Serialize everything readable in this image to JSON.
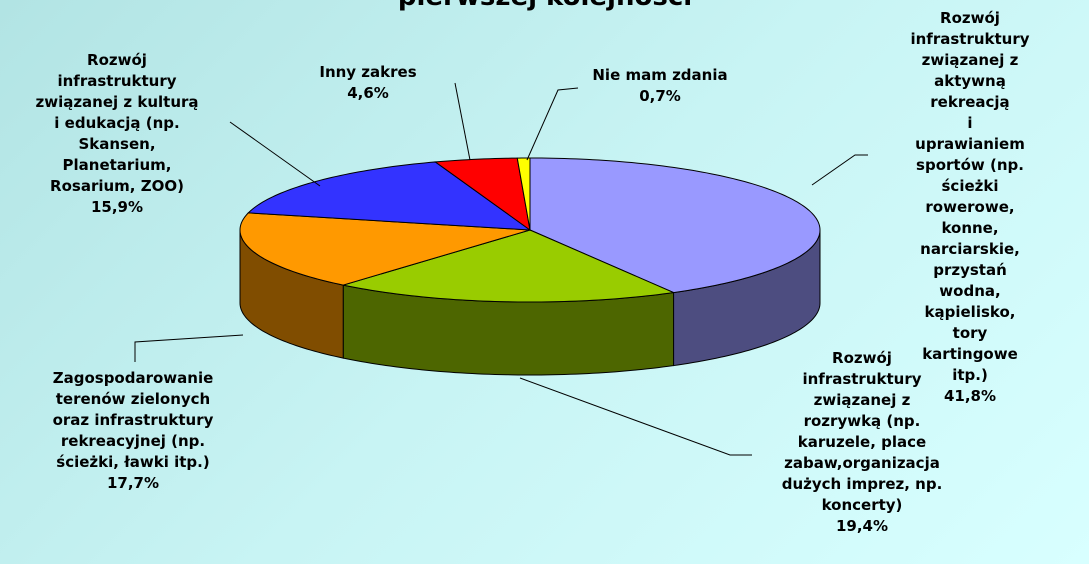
{
  "chart_data": {
    "type": "pie3d",
    "title": "pierwszej kolejności",
    "categories": [
      "Rozwój\ninfrastruktury\nzwiązanej z\naktywną rekreacją\ni uprawianiem\nsportów (np.\nścieżki rowerowe,\nkonne, narciarskie,\nprzystań wodna,\nkąpielisko, tory\nkartingowe itp.)",
      "Rozwój\ninfrastruktury\nzwiązanej z\nrozrywką (np.\nkaruzele, place\nzabaw,organizacja\ndużych imprez, np.\nkoncerty)",
      "Zagospodarowanie\nterenów zielonych\noraz infrastruktury\nrekreacyjnej (np.\nścieżki, ławki itp.)",
      "Rozwój\ninfrastruktury\nzwiązanej z kulturą\ni edukacją (np.\nSkansen,\nPlanetarium,\nRosarium, ZOO)",
      "Inny zakres",
      "Nie mam zdania"
    ],
    "values": [
      41.8,
      19.4,
      17.7,
      15.9,
      4.6,
      0.7
    ],
    "value_labels": [
      "41,8%",
      "19,4%",
      "17,7%",
      "15,9%",
      "4,6%",
      "0,7%"
    ],
    "colors": [
      "#9999ff",
      "#99cc00",
      "#ff9900",
      "#3333ff",
      "#ff0000",
      "#ffff00"
    ]
  }
}
